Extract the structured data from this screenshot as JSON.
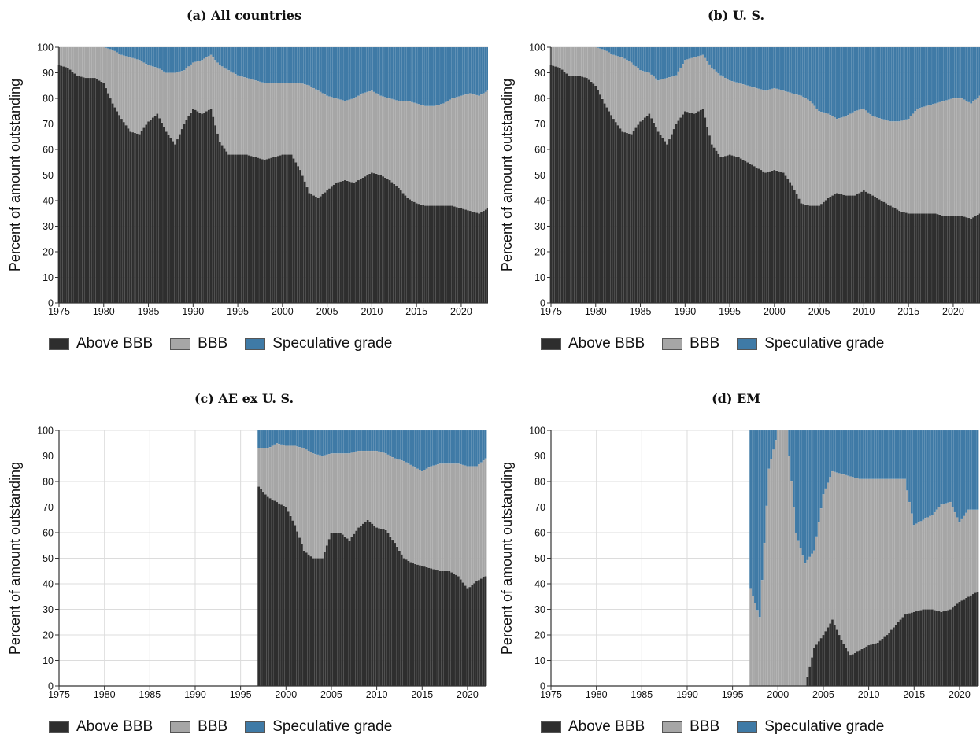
{
  "figure": {
    "ylabel": "Percent of amount outstanding",
    "legend": [
      {
        "label": "Above BBB",
        "color": "#2e2e2e"
      },
      {
        "label": "BBB",
        "color": "#a6a6a6"
      },
      {
        "label": "Speculative grade",
        "color": "#3f7aa6"
      }
    ],
    "colors": {
      "above": "#2e2e2e",
      "bbb": "#a6a6a6",
      "spec": "#3f7aa6",
      "grid": "#dcdcdc",
      "axis": "#333333"
    }
  },
  "chart_data": [
    {
      "type": "area",
      "stacked": true,
      "title": "(a) All countries",
      "ylabel": "Percent of amount outstanding",
      "xlim": [
        1975,
        2023
      ],
      "ylim": [
        0,
        100
      ],
      "xticks": [
        1975,
        1980,
        1985,
        1990,
        1995,
        2000,
        2005,
        2010,
        2015,
        2020
      ],
      "yticks": [
        0,
        10,
        20,
        30,
        40,
        50,
        60,
        70,
        80,
        90,
        100
      ],
      "grid": true,
      "legend_position": "bottom",
      "start": 1975,
      "end": 2023,
      "x": [
        1975,
        1976,
        1977,
        1978,
        1979,
        1980,
        1981,
        1982,
        1983,
        1984,
        1985,
        1986,
        1987,
        1988,
        1989,
        1990,
        1991,
        1992,
        1993,
        1994,
        1995,
        1996,
        1997,
        1998,
        1999,
        2000,
        2001,
        2002,
        2003,
        2004,
        2005,
        2006,
        2007,
        2008,
        2009,
        2010,
        2011,
        2012,
        2013,
        2014,
        2015,
        2016,
        2017,
        2018,
        2019,
        2020,
        2021,
        2022,
        2023
      ],
      "series": [
        {
          "name": "Above BBB",
          "values": [
            93,
            92,
            89,
            88,
            88,
            86,
            78,
            72,
            67,
            66,
            71,
            74,
            67,
            62,
            70,
            76,
            74,
            76,
            63,
            58,
            58,
            58,
            57,
            56,
            57,
            58,
            58,
            52,
            43,
            41,
            44,
            47,
            48,
            47,
            49,
            51,
            50,
            48,
            45,
            41,
            39,
            38,
            38,
            38,
            38,
            37,
            36,
            35,
            37
          ]
        },
        {
          "name": "BBB",
          "values": [
            7,
            8,
            11,
            12,
            12,
            14,
            21,
            25,
            29,
            29,
            22,
            18,
            23,
            28,
            21,
            18,
            21,
            21,
            30,
            33,
            31,
            30,
            30,
            30,
            29,
            28,
            28,
            34,
            42,
            42,
            37,
            33,
            31,
            33,
            33,
            32,
            31,
            32,
            34,
            38,
            39,
            39,
            39,
            40,
            42,
            44,
            46,
            46,
            46
          ]
        },
        {
          "name": "Speculative grade",
          "values": [
            0,
            0,
            0,
            0,
            0,
            0,
            1,
            3,
            4,
            5,
            7,
            8,
            10,
            10,
            9,
            6,
            5,
            3,
            7,
            9,
            11,
            12,
            13,
            14,
            14,
            14,
            14,
            14,
            15,
            17,
            19,
            20,
            21,
            20,
            18,
            17,
            19,
            20,
            21,
            21,
            22,
            23,
            23,
            22,
            20,
            19,
            18,
            19,
            17
          ]
        }
      ]
    },
    {
      "type": "area",
      "stacked": true,
      "title": "(b) U. S.",
      "ylabel": "Percent of amount outstanding",
      "xlim": [
        1975,
        2023
      ],
      "ylim": [
        0,
        100
      ],
      "xticks": [
        1975,
        1980,
        1985,
        1990,
        1995,
        2000,
        2005,
        2010,
        2015,
        2020
      ],
      "yticks": [
        0,
        10,
        20,
        30,
        40,
        50,
        60,
        70,
        80,
        90,
        100
      ],
      "grid": true,
      "legend_position": "bottom",
      "start": 1975,
      "end": 2023,
      "x": [
        1975,
        1976,
        1977,
        1978,
        1979,
        1980,
        1981,
        1982,
        1983,
        1984,
        1985,
        1986,
        1987,
        1988,
        1989,
        1990,
        1991,
        1992,
        1993,
        1994,
        1995,
        1996,
        1997,
        1998,
        1999,
        2000,
        2001,
        2002,
        2003,
        2004,
        2005,
        2006,
        2007,
        2008,
        2009,
        2010,
        2011,
        2012,
        2013,
        2014,
        2015,
        2016,
        2017,
        2018,
        2019,
        2020,
        2021,
        2022,
        2023
      ],
      "series": [
        {
          "name": "Above BBB",
          "values": [
            93,
            92,
            89,
            89,
            88,
            85,
            78,
            72,
            67,
            66,
            71,
            74,
            67,
            62,
            70,
            75,
            74,
            76,
            62,
            57,
            58,
            57,
            55,
            53,
            51,
            52,
            51,
            46,
            39,
            38,
            38,
            41,
            43,
            42,
            42,
            44,
            42,
            40,
            38,
            36,
            35,
            35,
            35,
            35,
            34,
            34,
            34,
            33,
            35
          ]
        },
        {
          "name": "BBB",
          "values": [
            7,
            8,
            11,
            11,
            12,
            15,
            21,
            25,
            29,
            28,
            20,
            16,
            20,
            26,
            19,
            20,
            22,
            21,
            30,
            32,
            29,
            29,
            30,
            31,
            32,
            32,
            32,
            36,
            42,
            41,
            37,
            33,
            29,
            31,
            33,
            32,
            31,
            32,
            33,
            35,
            37,
            41,
            42,
            43,
            45,
            46,
            46,
            45,
            46
          ]
        },
        {
          "name": "Speculative grade",
          "values": [
            0,
            0,
            0,
            0,
            0,
            0,
            1,
            3,
            4,
            6,
            9,
            10,
            13,
            12,
            11,
            5,
            4,
            3,
            8,
            11,
            13,
            14,
            15,
            16,
            17,
            16,
            17,
            18,
            19,
            21,
            25,
            26,
            28,
            27,
            25,
            24,
            27,
            28,
            29,
            29,
            28,
            24,
            23,
            22,
            21,
            20,
            20,
            22,
            19
          ]
        }
      ]
    },
    {
      "type": "area",
      "stacked": true,
      "title": "(c) AE ex U. S.",
      "ylabel": "Percent of amount outstanding",
      "xlim": [
        1975,
        2022
      ],
      "ylim": [
        0,
        100
      ],
      "xticks": [
        1975,
        1980,
        1985,
        1990,
        1995,
        2000,
        2005,
        2010,
        2015,
        2020
      ],
      "yticks": [
        0,
        10,
        20,
        30,
        40,
        50,
        60,
        70,
        80,
        90,
        100
      ],
      "grid": true,
      "legend_position": "bottom",
      "start": 1997,
      "end": 2022,
      "x": [
        1997,
        1998,
        1999,
        2000,
        2001,
        2002,
        2003,
        2004,
        2005,
        2006,
        2007,
        2008,
        2009,
        2010,
        2011,
        2012,
        2013,
        2014,
        2015,
        2016,
        2017,
        2018,
        2019,
        2020,
        2021,
        2022
      ],
      "series": [
        {
          "name": "Above BBB",
          "values": [
            78,
            74,
            72,
            70,
            63,
            53,
            50,
            50,
            60,
            60,
            57,
            62,
            65,
            62,
            61,
            56,
            50,
            48,
            47,
            46,
            45,
            45,
            43,
            38,
            41,
            43
          ]
        },
        {
          "name": "BBB",
          "values": [
            15,
            19,
            23,
            24,
            31,
            40,
            41,
            40,
            31,
            31,
            34,
            30,
            27,
            30,
            30,
            33,
            38,
            38,
            37,
            40,
            42,
            42,
            44,
            48,
            45,
            46
          ]
        },
        {
          "name": "Speculative grade",
          "values": [
            7,
            7,
            5,
            6,
            6,
            7,
            9,
            10,
            9,
            9,
            9,
            8,
            8,
            8,
            9,
            11,
            12,
            14,
            16,
            14,
            13,
            13,
            13,
            14,
            14,
            11
          ]
        }
      ]
    },
    {
      "type": "area",
      "stacked": true,
      "title": "(d) EM",
      "ylabel": "Percent of amount outstanding",
      "xlim": [
        1975,
        2022
      ],
      "ylim": [
        0,
        100
      ],
      "xticks": [
        1975,
        1980,
        1985,
        1990,
        1995,
        2000,
        2005,
        2010,
        2015,
        2020
      ],
      "yticks": [
        0,
        10,
        20,
        30,
        40,
        50,
        60,
        70,
        80,
        90,
        100
      ],
      "grid": true,
      "legend_position": "bottom",
      "start": 1997,
      "end": 2022,
      "x": [
        1997,
        1998,
        1999,
        2000,
        2001,
        2002,
        2003,
        2004,
        2005,
        2006,
        2007,
        2008,
        2009,
        2010,
        2011,
        2012,
        2013,
        2014,
        2015,
        2016,
        2017,
        2018,
        2019,
        2020,
        2021,
        2022
      ],
      "series": [
        {
          "name": "Above BBB",
          "values": [
            0,
            0,
            0,
            0,
            0,
            0,
            0,
            15,
            20,
            26,
            18,
            12,
            14,
            16,
            17,
            20,
            24,
            28,
            29,
            30,
            30,
            29,
            30,
            33,
            35,
            37
          ]
        },
        {
          "name": "BBB",
          "values": [
            38,
            27,
            85,
            100,
            100,
            60,
            48,
            38,
            55,
            58,
            65,
            70,
            67,
            65,
            64,
            61,
            57,
            53,
            34,
            35,
            37,
            42,
            42,
            31,
            34,
            32
          ]
        },
        {
          "name": "Speculative grade",
          "values": [
            62,
            73,
            15,
            0,
            0,
            40,
            52,
            47,
            25,
            16,
            17,
            18,
            19,
            19,
            19,
            19,
            19,
            19,
            37,
            35,
            33,
            29,
            28,
            36,
            31,
            31
          ]
        }
      ]
    }
  ]
}
